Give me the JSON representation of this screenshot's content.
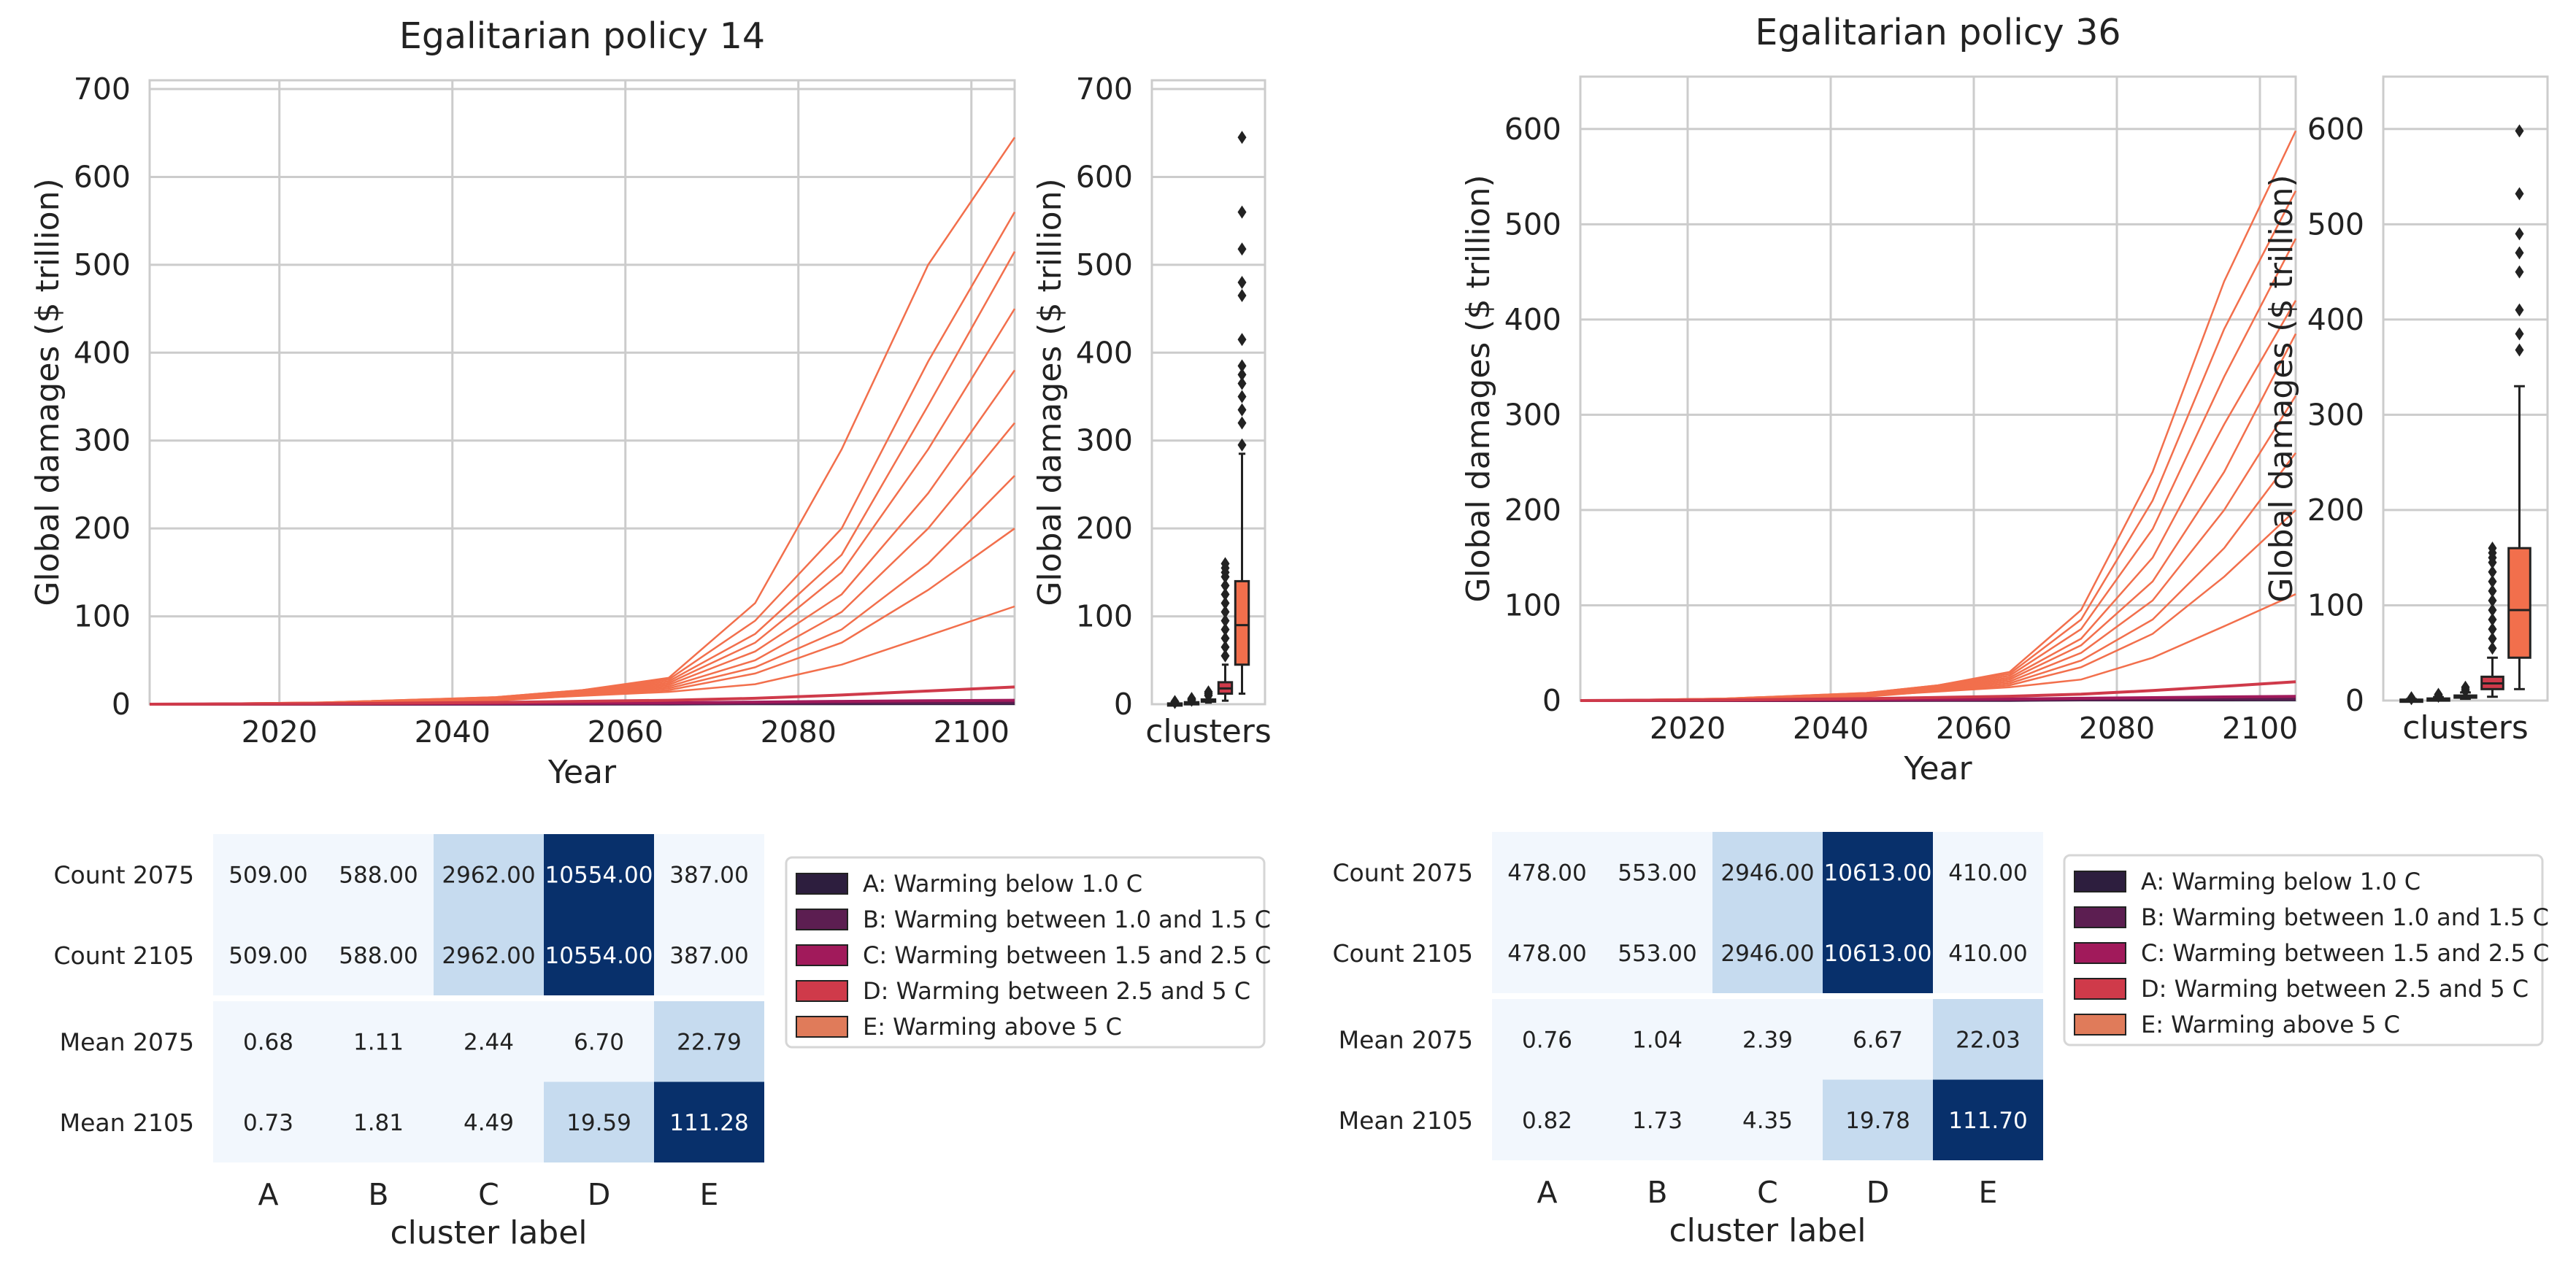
{
  "chart_data": [
    {
      "type": "line",
      "title": "Egalitarian policy 14",
      "xlabel": "Year",
      "ylabel": "Global damages ($ trillion)",
      "xlim": [
        2005,
        2105
      ],
      "ylim": [
        0,
        710
      ],
      "xticks": [
        2020,
        2040,
        2060,
        2080,
        2100
      ],
      "yticks": [
        0,
        100,
        200,
        300,
        400,
        500,
        600,
        700
      ],
      "grid": true,
      "series": [
        {
          "cluster": "A",
          "color": "#2d1e3e",
          "x": [
            2005,
            2025,
            2045,
            2065,
            2075,
            2085,
            2095,
            2105
          ],
          "y": [
            0,
            0,
            0.1,
            0.2,
            0.68,
            0.7,
            0.72,
            0.73
          ]
        },
        {
          "cluster": "B",
          "color": "#5c1e51",
          "x": [
            2005,
            2025,
            2045,
            2065,
            2075,
            2085,
            2095,
            2105
          ],
          "y": [
            0,
            0.1,
            0.3,
            0.6,
            1.11,
            1.4,
            1.6,
            1.81
          ]
        },
        {
          "cluster": "C",
          "color": "#a11a5b",
          "x": [
            2005,
            2025,
            2045,
            2065,
            2075,
            2085,
            2095,
            2105
          ],
          "y": [
            0,
            0.3,
            0.8,
            1.6,
            2.44,
            3.2,
            3.9,
            4.49
          ]
        },
        {
          "cluster": "D",
          "color": "#cf3a4a",
          "x": [
            2005,
            2025,
            2045,
            2065,
            2075,
            2085,
            2095,
            2105
          ],
          "y": [
            0,
            0.6,
            2,
            4.5,
            6.7,
            10.5,
            15,
            19.59
          ]
        },
        {
          "cluster": "E",
          "color": "#f26f4c",
          "x": [
            2005,
            2025,
            2045,
            2065,
            2075,
            2085,
            2095,
            2105
          ],
          "y": [
            0,
            1,
            5,
            14,
            22.79,
            45,
            78,
            111.28
          ]
        },
        {
          "cluster": "E",
          "color": "#f26f4c",
          "x": [
            2005,
            2025,
            2045,
            2055,
            2065,
            2075,
            2085,
            2095,
            2105
          ],
          "y": [
            0,
            2,
            8,
            16,
            30,
            115,
            290,
            500,
            645
          ]
        },
        {
          "cluster": "E",
          "color": "#f26f4c",
          "x": [
            2005,
            2025,
            2045,
            2055,
            2065,
            2075,
            2085,
            2095,
            2105
          ],
          "y": [
            0,
            2,
            8,
            16,
            28,
            95,
            200,
            390,
            560
          ]
        },
        {
          "cluster": "E",
          "color": "#f26f4c",
          "x": [
            2005,
            2025,
            2045,
            2055,
            2065,
            2075,
            2085,
            2095,
            2105
          ],
          "y": [
            0,
            2,
            7,
            15,
            26,
            80,
            170,
            340,
            515
          ]
        },
        {
          "cluster": "E",
          "color": "#f26f4c",
          "x": [
            2005,
            2025,
            2045,
            2055,
            2065,
            2075,
            2085,
            2095,
            2105
          ],
          "y": [
            0,
            1.5,
            6,
            14,
            24,
            70,
            150,
            290,
            450
          ]
        },
        {
          "cluster": "E",
          "color": "#f26f4c",
          "x": [
            2005,
            2025,
            2045,
            2055,
            2065,
            2075,
            2085,
            2095,
            2105
          ],
          "y": [
            0,
            1.5,
            6,
            13,
            22,
            60,
            125,
            240,
            380
          ]
        },
        {
          "cluster": "E",
          "color": "#f26f4c",
          "x": [
            2005,
            2025,
            2045,
            2055,
            2065,
            2075,
            2085,
            2095,
            2105
          ],
          "y": [
            0,
            1.5,
            5,
            12,
            20,
            50,
            105,
            200,
            320
          ]
        },
        {
          "cluster": "E",
          "color": "#f26f4c",
          "x": [
            2005,
            2025,
            2045,
            2055,
            2065,
            2075,
            2085,
            2095,
            2105
          ],
          "y": [
            0,
            1,
            5,
            11,
            18,
            42,
            85,
            160,
            260
          ]
        },
        {
          "cluster": "E",
          "color": "#f26f4c",
          "x": [
            2005,
            2025,
            2045,
            2055,
            2065,
            2075,
            2085,
            2095,
            2105
          ],
          "y": [
            0,
            1,
            4,
            10,
            16,
            35,
            70,
            130,
            200
          ]
        }
      ]
    },
    {
      "type": "box",
      "xlabel": "clusters",
      "ylabel": "Global damages ($ trillion)",
      "ylim": [
        0,
        710
      ],
      "yticks": [
        0,
        100,
        200,
        300,
        400,
        500,
        600,
        700
      ],
      "boxes": [
        {
          "cluster": "A",
          "color": "#2d1e3e",
          "q1": 0.5,
          "median": 0.7,
          "q3": 0.9,
          "whisker_low": 0.2,
          "whisker_high": 1.5,
          "outliers": [
            2,
            2.5,
            3
          ]
        },
        {
          "cluster": "B",
          "color": "#5c1e51",
          "q1": 1.3,
          "median": 1.8,
          "q3": 2.3,
          "whisker_low": 0.6,
          "whisker_high": 3.8,
          "outliers": [
            4.5,
            5.5,
            6.5
          ]
        },
        {
          "cluster": "C",
          "color": "#a11a5b",
          "q1": 3.5,
          "median": 4.4,
          "q3": 5.4,
          "whisker_low": 1.8,
          "whisker_high": 8.5,
          "outliers": [
            10,
            12,
            14
          ]
        },
        {
          "cluster": "D",
          "color": "#cf3a4a",
          "q1": 12,
          "median": 18,
          "q3": 25,
          "whisker_low": 4,
          "whisker_high": 45,
          "outliers": [
            55,
            65,
            75,
            85,
            95,
            105,
            115,
            125,
            135,
            145,
            150,
            155,
            160
          ]
        },
        {
          "cluster": "E",
          "color": "#f26f4c",
          "q1": 45,
          "median": 90,
          "q3": 140,
          "whisker_low": 12,
          "whisker_high": 285,
          "outliers": [
            295,
            320,
            335,
            350,
            365,
            375,
            385,
            415,
            465,
            480,
            518,
            560,
            645
          ]
        }
      ]
    },
    {
      "type": "line",
      "title": "Egalitarian policy 36",
      "xlabel": "Year",
      "ylabel": "Global damages ($ trillion)",
      "xlim": [
        2005,
        2105
      ],
      "ylim": [
        0,
        655
      ],
      "xticks": [
        2020,
        2040,
        2060,
        2080,
        2100
      ],
      "yticks": [
        0,
        100,
        200,
        300,
        400,
        500,
        600
      ],
      "grid": true,
      "series": [
        {
          "cluster": "A",
          "color": "#2d1e3e",
          "x": [
            2005,
            2025,
            2045,
            2065,
            2075,
            2085,
            2095,
            2105
          ],
          "y": [
            0,
            0,
            0.1,
            0.2,
            0.76,
            0.78,
            0.8,
            0.82
          ]
        },
        {
          "cluster": "B",
          "color": "#5c1e51",
          "x": [
            2005,
            2025,
            2045,
            2065,
            2075,
            2085,
            2095,
            2105
          ],
          "y": [
            0,
            0.1,
            0.3,
            0.6,
            1.04,
            1.3,
            1.5,
            1.73
          ]
        },
        {
          "cluster": "C",
          "color": "#a11a5b",
          "x": [
            2005,
            2025,
            2045,
            2065,
            2075,
            2085,
            2095,
            2105
          ],
          "y": [
            0,
            0.3,
            0.8,
            1.6,
            2.39,
            3.1,
            3.8,
            4.35
          ]
        },
        {
          "cluster": "D",
          "color": "#cf3a4a",
          "x": [
            2005,
            2025,
            2045,
            2065,
            2075,
            2085,
            2095,
            2105
          ],
          "y": [
            0,
            0.6,
            2,
            4.5,
            6.67,
            10.5,
            15,
            19.78
          ]
        },
        {
          "cluster": "E",
          "color": "#f26f4c",
          "x": [
            2005,
            2025,
            2045,
            2065,
            2075,
            2085,
            2095,
            2105
          ],
          "y": [
            0,
            1,
            5,
            14,
            22.03,
            45,
            78,
            111.7
          ]
        },
        {
          "cluster": "E",
          "color": "#f26f4c",
          "x": [
            2005,
            2025,
            2045,
            2055,
            2065,
            2075,
            2085,
            2095,
            2105
          ],
          "y": [
            0,
            2,
            8,
            16,
            30,
            95,
            240,
            440,
            598
          ]
        },
        {
          "cluster": "E",
          "color": "#f26f4c",
          "x": [
            2005,
            2025,
            2045,
            2055,
            2065,
            2075,
            2085,
            2095,
            2105
          ],
          "y": [
            0,
            2,
            8,
            16,
            28,
            85,
            210,
            390,
            535
          ]
        },
        {
          "cluster": "E",
          "color": "#f26f4c",
          "x": [
            2005,
            2025,
            2045,
            2055,
            2065,
            2075,
            2085,
            2095,
            2105
          ],
          "y": [
            0,
            2,
            7,
            15,
            26,
            75,
            180,
            340,
            485
          ]
        },
        {
          "cluster": "E",
          "color": "#f26f4c",
          "x": [
            2005,
            2025,
            2045,
            2055,
            2065,
            2075,
            2085,
            2095,
            2105
          ],
          "y": [
            0,
            1.5,
            6,
            14,
            24,
            65,
            150,
            290,
            420
          ]
        },
        {
          "cluster": "E",
          "color": "#f26f4c",
          "x": [
            2005,
            2025,
            2045,
            2055,
            2065,
            2075,
            2085,
            2095,
            2105
          ],
          "y": [
            0,
            1.5,
            6,
            13,
            22,
            58,
            125,
            240,
            385
          ]
        },
        {
          "cluster": "E",
          "color": "#f26f4c",
          "x": [
            2005,
            2025,
            2045,
            2055,
            2065,
            2075,
            2085,
            2095,
            2105
          ],
          "y": [
            0,
            1.5,
            5,
            12,
            20,
            50,
            105,
            200,
            320
          ]
        },
        {
          "cluster": "E",
          "color": "#f26f4c",
          "x": [
            2005,
            2025,
            2045,
            2055,
            2065,
            2075,
            2085,
            2095,
            2105
          ],
          "y": [
            0,
            1,
            5,
            11,
            18,
            42,
            85,
            160,
            260
          ]
        },
        {
          "cluster": "E",
          "color": "#f26f4c",
          "x": [
            2005,
            2025,
            2045,
            2055,
            2065,
            2075,
            2085,
            2095,
            2105
          ],
          "y": [
            0,
            1,
            4,
            10,
            16,
            35,
            70,
            130,
            200
          ]
        }
      ]
    },
    {
      "type": "box",
      "xlabel": "clusters",
      "ylabel": "Global damages ($ trillion)",
      "ylim": [
        0,
        655
      ],
      "yticks": [
        0,
        100,
        200,
        300,
        400,
        500,
        600
      ],
      "boxes": [
        {
          "cluster": "A",
          "color": "#2d1e3e",
          "q1": 0.5,
          "median": 0.8,
          "q3": 1.0,
          "whisker_low": 0.2,
          "whisker_high": 1.6,
          "outliers": [
            2,
            2.5,
            3
          ]
        },
        {
          "cluster": "B",
          "color": "#5c1e51",
          "q1": 1.2,
          "median": 1.7,
          "q3": 2.2,
          "whisker_low": 0.6,
          "whisker_high": 3.6,
          "outliers": [
            4.5,
            5.5,
            6.5
          ]
        },
        {
          "cluster": "C",
          "color": "#a11a5b",
          "q1": 3.4,
          "median": 4.3,
          "q3": 5.3,
          "whisker_low": 1.8,
          "whisker_high": 8.5,
          "outliers": [
            10,
            12,
            14
          ]
        },
        {
          "cluster": "D",
          "color": "#cf3a4a",
          "q1": 12,
          "median": 18,
          "q3": 25,
          "whisker_low": 4,
          "whisker_high": 45,
          "outliers": [
            55,
            65,
            75,
            85,
            95,
            105,
            115,
            125,
            135,
            145,
            150,
            155,
            160
          ]
        },
        {
          "cluster": "E",
          "color": "#f26f4c",
          "q1": 45,
          "median": 95,
          "q3": 160,
          "whisker_low": 12,
          "whisker_high": 330,
          "outliers": [
            368,
            385,
            410,
            450,
            470,
            490,
            532,
            598
          ]
        }
      ]
    },
    {
      "type": "heatmap",
      "xlabel": "cluster label",
      "columns": [
        "A",
        "B",
        "C",
        "D",
        "E"
      ],
      "rows": [
        {
          "label": "Count 2075",
          "values": [
            "509.00",
            "588.00",
            "2962.00",
            "10554.00",
            "387.00"
          ]
        },
        {
          "label": "Count 2105",
          "values": [
            "509.00",
            "588.00",
            "2962.00",
            "10554.00",
            "387.00"
          ]
        },
        {
          "label": "Mean 2075",
          "values": [
            "0.68",
            "1.11",
            "2.44",
            "6.70",
            "22.79"
          ]
        },
        {
          "label": "Mean 2105",
          "values": [
            "0.73",
            "1.81",
            "4.49",
            "19.59",
            "111.28"
          ]
        }
      ]
    },
    {
      "type": "heatmap",
      "xlabel": "cluster label",
      "columns": [
        "A",
        "B",
        "C",
        "D",
        "E"
      ],
      "rows": [
        {
          "label": "Count 2075",
          "values": [
            "478.00",
            "553.00",
            "2946.00",
            "10613.00",
            "410.00"
          ]
        },
        {
          "label": "Count 2105",
          "values": [
            "478.00",
            "553.00",
            "2946.00",
            "10613.00",
            "410.00"
          ]
        },
        {
          "label": "Mean 2075",
          "values": [
            "0.76",
            "1.04",
            "2.39",
            "6.67",
            "22.03"
          ]
        },
        {
          "label": "Mean 2105",
          "values": [
            "0.82",
            "1.73",
            "4.35",
            "19.78",
            "111.70"
          ]
        }
      ]
    }
  ],
  "legend": {
    "placement": "right of heatmap",
    "items": [
      {
        "label": "A: Warming below 1.0 C",
        "color": "#2d1e3e"
      },
      {
        "label": "B: Warming between 1.0 and 1.5 C",
        "color": "#5c1e51"
      },
      {
        "label": "C: Warming between 1.5 and 2.5 C",
        "color": "#a11a5b"
      },
      {
        "label": "D: Warming between 2.5 and 5 C",
        "color": "#cf3a4a"
      },
      {
        "label": "E: Warming above 5 C",
        "color": "#e07b5a"
      }
    ]
  },
  "colors": {
    "grid": "#cccccc",
    "axes": "#cccccc",
    "heat_dark": "#08306b",
    "heat_mid": "#c6dbef",
    "heat_light": "#f2f7fd"
  }
}
